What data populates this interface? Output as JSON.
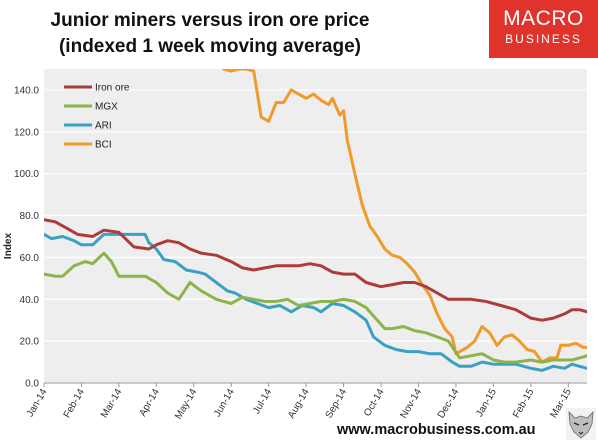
{
  "header": {
    "title_line1": "Junior miners versus iron ore price",
    "title_line2": "(indexed 1 week moving average)"
  },
  "logo": {
    "line1": "MACRO",
    "line2": "BUSINESS",
    "color": "#e0332c"
  },
  "footer": {
    "url": "www.macrobusiness.com.au"
  },
  "colors": {
    "plot_bg": "#eeeeee",
    "grid": "#ffffff"
  },
  "chart_data": {
    "type": "line",
    "title": "Junior miners versus iron ore price",
    "subtitle": "(indexed 1 week moving average)",
    "xlabel": "",
    "ylabel": "Index",
    "ylim": [
      0,
      150
    ],
    "yticks": [
      0,
      20,
      40,
      60,
      80,
      100,
      120,
      140
    ],
    "ytick_labels": [
      "0.0",
      "20.0",
      "40.0",
      "60.0",
      "80.0",
      "100.0",
      "120.0",
      "140.0"
    ],
    "xlim": [
      0,
      14.5
    ],
    "xticks": [
      0,
      1,
      2,
      3,
      4,
      5,
      6,
      7,
      8,
      9,
      10,
      11,
      12,
      13,
      14
    ],
    "xtick_labels": [
      "Jan-14",
      "Feb-14",
      "Mar-14",
      "Apr-14",
      "May-14",
      "Jun-14",
      "Jul-14",
      "Aug-14",
      "Sep-14",
      "Oct-14",
      "Nov-14",
      "Dec-14",
      "Jan-15",
      "Feb-15",
      "Mar-15"
    ],
    "x_unit": "months since Jan-14",
    "grid": "horizontal",
    "legend_position": "top-left",
    "series": [
      {
        "name": "Iron ore",
        "color": "#b03a3a",
        "points": [
          [
            0,
            78
          ],
          [
            0.3,
            77
          ],
          [
            0.6,
            74
          ],
          [
            0.9,
            71
          ],
          [
            1.3,
            70
          ],
          [
            1.6,
            73
          ],
          [
            2.0,
            72
          ],
          [
            2.4,
            65
          ],
          [
            2.8,
            64
          ],
          [
            3.0,
            66
          ],
          [
            3.3,
            68
          ],
          [
            3.6,
            67
          ],
          [
            3.9,
            64
          ],
          [
            4.2,
            62
          ],
          [
            4.6,
            61
          ],
          [
            5.0,
            58
          ],
          [
            5.3,
            55
          ],
          [
            5.6,
            54
          ],
          [
            5.9,
            55
          ],
          [
            6.2,
            56
          ],
          [
            6.5,
            56
          ],
          [
            6.8,
            56
          ],
          [
            7.1,
            57
          ],
          [
            7.4,
            56
          ],
          [
            7.7,
            53
          ],
          [
            8.0,
            52
          ],
          [
            8.3,
            52
          ],
          [
            8.6,
            48
          ],
          [
            9.0,
            46
          ],
          [
            9.3,
            47
          ],
          [
            9.6,
            48
          ],
          [
            9.9,
            48
          ],
          [
            10.2,
            46
          ],
          [
            10.5,
            43
          ],
          [
            10.8,
            40
          ],
          [
            11.1,
            40
          ],
          [
            11.4,
            40
          ],
          [
            11.8,
            39
          ],
          [
            12.2,
            37
          ],
          [
            12.6,
            35
          ],
          [
            13.0,
            31
          ],
          [
            13.3,
            30
          ],
          [
            13.6,
            31
          ],
          [
            13.9,
            33
          ],
          [
            14.1,
            35
          ],
          [
            14.3,
            35
          ],
          [
            14.5,
            34
          ]
        ]
      },
      {
        "name": "MGX",
        "color": "#8cb44a",
        "points": [
          [
            0,
            52
          ],
          [
            0.3,
            51
          ],
          [
            0.5,
            51
          ],
          [
            0.8,
            56
          ],
          [
            1.1,
            58
          ],
          [
            1.3,
            57
          ],
          [
            1.6,
            62
          ],
          [
            1.8,
            58
          ],
          [
            2.0,
            51
          ],
          [
            2.4,
            51
          ],
          [
            2.7,
            51
          ],
          [
            3.0,
            48
          ],
          [
            3.3,
            43
          ],
          [
            3.6,
            40
          ],
          [
            3.9,
            48
          ],
          [
            4.2,
            44
          ],
          [
            4.6,
            40
          ],
          [
            5.0,
            38
          ],
          [
            5.3,
            41
          ],
          [
            5.6,
            40
          ],
          [
            5.9,
            39
          ],
          [
            6.2,
            39
          ],
          [
            6.5,
            40
          ],
          [
            6.8,
            37
          ],
          [
            7.1,
            38
          ],
          [
            7.4,
            39
          ],
          [
            7.7,
            39
          ],
          [
            8.0,
            40
          ],
          [
            8.3,
            39
          ],
          [
            8.6,
            36
          ],
          [
            8.9,
            30
          ],
          [
            9.1,
            26
          ],
          [
            9.3,
            26
          ],
          [
            9.6,
            27
          ],
          [
            9.9,
            25
          ],
          [
            10.2,
            24
          ],
          [
            10.5,
            22
          ],
          [
            10.8,
            20
          ],
          [
            11.1,
            12
          ],
          [
            11.4,
            13
          ],
          [
            11.7,
            14
          ],
          [
            12.0,
            11
          ],
          [
            12.3,
            10
          ],
          [
            12.6,
            10
          ],
          [
            13.0,
            11
          ],
          [
            13.3,
            10
          ],
          [
            13.6,
            11
          ],
          [
            13.9,
            11
          ],
          [
            14.1,
            11
          ],
          [
            14.3,
            12
          ],
          [
            14.5,
            13
          ]
        ]
      },
      {
        "name": "ARI",
        "color": "#3aa0c4",
        "points": [
          [
            0,
            71
          ],
          [
            0.2,
            69
          ],
          [
            0.5,
            70
          ],
          [
            0.8,
            68
          ],
          [
            1.0,
            66
          ],
          [
            1.3,
            66
          ],
          [
            1.6,
            71
          ],
          [
            2.0,
            71
          ],
          [
            2.4,
            71
          ],
          [
            2.7,
            71
          ],
          [
            2.8,
            67
          ],
          [
            3.0,
            64
          ],
          [
            3.2,
            59
          ],
          [
            3.5,
            58
          ],
          [
            3.8,
            54
          ],
          [
            4.1,
            53
          ],
          [
            4.3,
            52
          ],
          [
            4.6,
            48
          ],
          [
            4.9,
            44
          ],
          [
            5.1,
            43
          ],
          [
            5.4,
            40
          ],
          [
            5.7,
            38
          ],
          [
            6.0,
            36
          ],
          [
            6.3,
            37
          ],
          [
            6.6,
            34
          ],
          [
            6.9,
            37
          ],
          [
            7.2,
            36
          ],
          [
            7.4,
            34
          ],
          [
            7.7,
            38
          ],
          [
            8.0,
            37
          ],
          [
            8.3,
            34
          ],
          [
            8.6,
            30
          ],
          [
            8.8,
            22
          ],
          [
            9.1,
            18
          ],
          [
            9.4,
            16
          ],
          [
            9.7,
            15
          ],
          [
            10.0,
            15
          ],
          [
            10.3,
            14
          ],
          [
            10.6,
            14
          ],
          [
            10.9,
            10
          ],
          [
            11.1,
            8
          ],
          [
            11.4,
            8
          ],
          [
            11.7,
            10
          ],
          [
            12.0,
            9
          ],
          [
            12.3,
            9
          ],
          [
            12.6,
            9
          ],
          [
            13.0,
            7
          ],
          [
            13.3,
            6
          ],
          [
            13.6,
            8
          ],
          [
            13.9,
            7
          ],
          [
            14.1,
            9
          ],
          [
            14.3,
            8
          ],
          [
            14.5,
            7
          ]
        ]
      },
      {
        "name": "BCI",
        "color": "#ef9a2a",
        "points": [
          [
            4.8,
            150
          ],
          [
            5.0,
            149
          ],
          [
            5.2,
            150
          ],
          [
            5.4,
            150
          ],
          [
            5.6,
            149
          ],
          [
            5.8,
            127
          ],
          [
            6.0,
            125
          ],
          [
            6.2,
            134
          ],
          [
            6.4,
            134
          ],
          [
            6.6,
            140
          ],
          [
            6.8,
            138
          ],
          [
            7.0,
            136
          ],
          [
            7.2,
            138
          ],
          [
            7.4,
            135
          ],
          [
            7.6,
            133
          ],
          [
            7.7,
            136
          ],
          [
            7.8,
            132
          ],
          [
            7.9,
            128
          ],
          [
            8.0,
            130
          ],
          [
            8.1,
            116
          ],
          [
            8.3,
            100
          ],
          [
            8.5,
            85
          ],
          [
            8.7,
            75
          ],
          [
            8.9,
            70
          ],
          [
            9.1,
            64
          ],
          [
            9.3,
            61
          ],
          [
            9.5,
            60
          ],
          [
            9.7,
            57
          ],
          [
            9.9,
            53
          ],
          [
            10.1,
            47
          ],
          [
            10.3,
            42
          ],
          [
            10.5,
            33
          ],
          [
            10.7,
            26
          ],
          [
            10.9,
            22
          ],
          [
            11.0,
            14
          ],
          [
            11.3,
            17
          ],
          [
            11.5,
            20
          ],
          [
            11.7,
            27
          ],
          [
            11.9,
            24
          ],
          [
            12.1,
            18
          ],
          [
            12.3,
            22
          ],
          [
            12.5,
            23
          ],
          [
            12.7,
            20
          ],
          [
            12.9,
            16
          ],
          [
            13.1,
            15
          ],
          [
            13.3,
            10
          ],
          [
            13.5,
            12
          ],
          [
            13.7,
            12
          ],
          [
            13.8,
            18
          ],
          [
            14.0,
            18
          ],
          [
            14.2,
            19
          ],
          [
            14.4,
            17
          ],
          [
            14.5,
            17
          ]
        ]
      }
    ]
  }
}
